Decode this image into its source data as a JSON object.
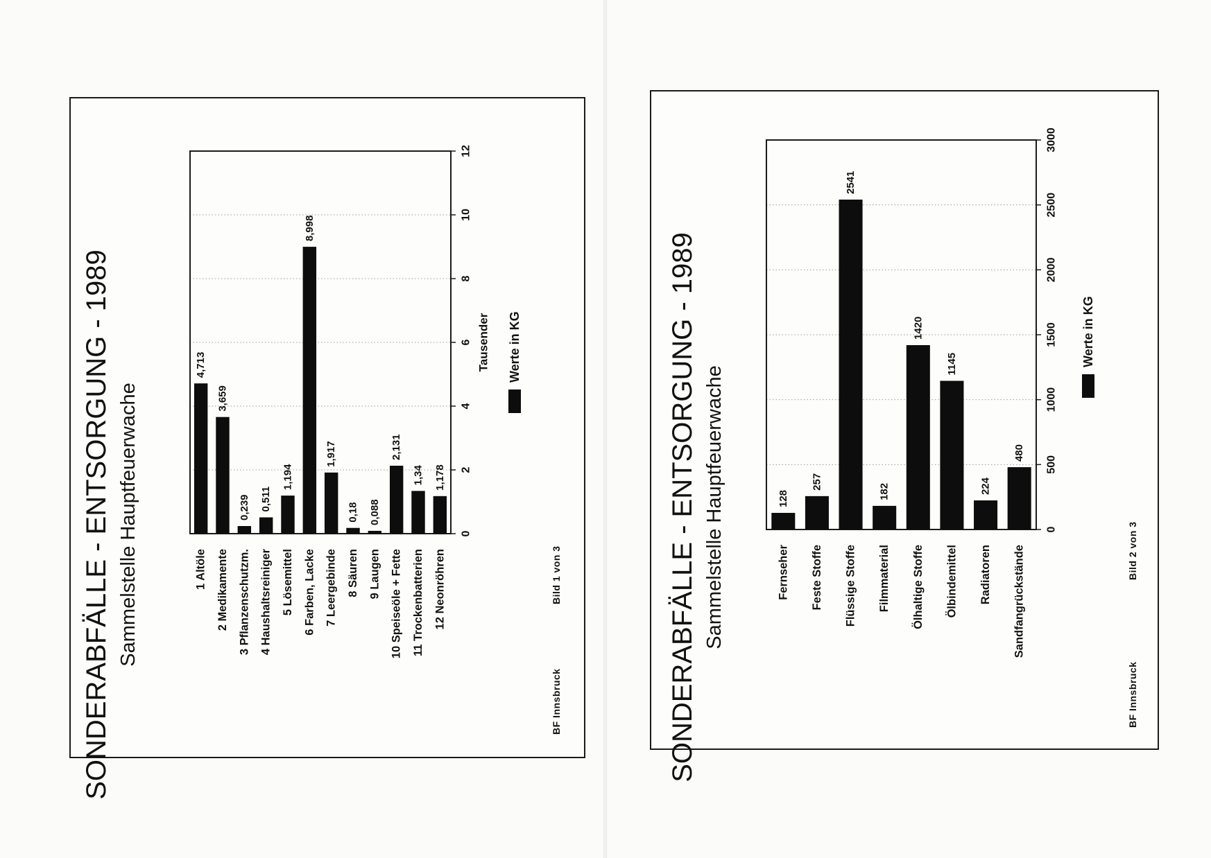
{
  "colors": {
    "bar": "#0d0d0d",
    "frame": "#1a1a1a",
    "grid": "#9a9a9a",
    "paper": "#fdfdfb"
  },
  "charts": [
    {
      "title": "SONDERABFÄLLE  -  ENTSORGUNG  -  1989",
      "subtitle": "Sammelstelle Hauptfeuerwache",
      "axis_unit_label": "Tausender",
      "legend": "Werte in KG",
      "footer_left": "BF Innsbruck",
      "footer_right": "Bild 1 von 3",
      "chart_data": {
        "type": "bar",
        "orientation": "vertical, printed rotated 90° counter-clockwise",
        "categories": [
          "1 Altöle",
          "2 Medikamente",
          "3 Pflanzenschutzm.",
          "4 Haushaltsreiniger",
          "5 Lösemittel",
          "6 Farben, Lacke",
          "7 Leergebinde",
          "8 Säuren",
          "9 Laugen",
          "10 Speiseöle + Fette",
          "11 Trockenbatterien",
          "12 Neonröhren"
        ],
        "values": [
          4.713,
          3.659,
          0.239,
          0.511,
          1.194,
          8.998,
          1.917,
          0.18,
          0.088,
          2.131,
          1.34,
          1.178
        ],
        "value_labels": [
          "4,713",
          "3,659",
          "0,239",
          "0,511",
          "1,194",
          "8,998",
          "1,917",
          "0,18",
          "0,088",
          "2,131",
          "1,34",
          "1,178"
        ],
        "ticks": [
          "0",
          "2",
          "4",
          "6",
          "8",
          "10",
          "12"
        ],
        "ylim": [
          0,
          12
        ],
        "grid": true,
        "legend_placement": "right"
      }
    },
    {
      "title": "SONDERABFÄLLE  -  ENTSORGUNG  -  1989",
      "subtitle": "Sammelstelle Hauptfeuerwache",
      "legend": "Werte in KG",
      "footer_left": "BF Innsbruck",
      "footer_right": "Bild 2 von 3",
      "chart_data": {
        "type": "bar",
        "orientation": "vertical, printed rotated 90° counter-clockwise",
        "categories": [
          "Fernseher",
          "Feste Stoffe",
          "Flüssige Stoffe",
          "Filmmaterial",
          "Ölhaltige Stoffe",
          "Ölbindemittel",
          "Radiatoren",
          "Sandfangrückstände"
        ],
        "values": [
          128,
          257,
          2541,
          182,
          1420,
          1145,
          224,
          480
        ],
        "value_labels": [
          "128",
          "257",
          "2541",
          "182",
          "1420",
          "1145",
          "224",
          "480"
        ],
        "ticks": [
          "0",
          "500",
          "1000",
          "1500",
          "2000",
          "2500",
          "3000"
        ],
        "ylim": [
          0,
          3000
        ],
        "grid": true,
        "legend_placement": "right"
      }
    }
  ]
}
